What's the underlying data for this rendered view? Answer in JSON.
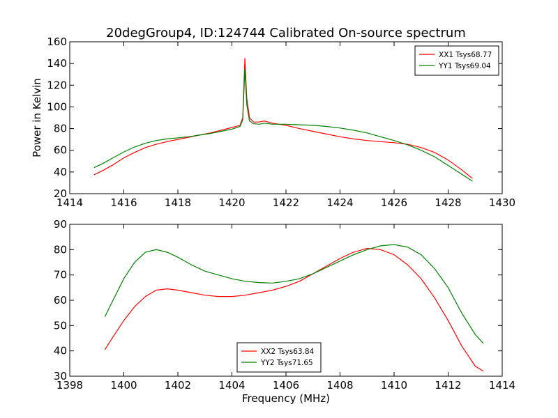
{
  "figure": {
    "title": "20degGroup4, ID:124744 Calibrated On-source spectrum"
  },
  "chart_data": [
    {
      "type": "line",
      "title": "20degGroup4, ID:124744 Calibrated On-source spectrum",
      "xlabel": "",
      "ylabel": "Power in Kelvin",
      "xlim": [
        1414,
        1430
      ],
      "ylim": [
        20,
        160
      ],
      "xticks": [
        1414,
        1416,
        1418,
        1420,
        1422,
        1424,
        1426,
        1428,
        1430
      ],
      "yticks": [
        20,
        40,
        60,
        80,
        100,
        120,
        140,
        160
      ],
      "legend_position": "top-right",
      "grid": false,
      "series": [
        {
          "name": "XX1 Tsys68.77",
          "color": "#ff0000",
          "points": [
            [
              1414.9,
              37.5
            ],
            [
              1415.2,
              41
            ],
            [
              1415.6,
              46.5
            ],
            [
              1416.0,
              53
            ],
            [
              1416.4,
              58
            ],
            [
              1416.8,
              62.5
            ],
            [
              1417.2,
              65.5
            ],
            [
              1417.6,
              68
            ],
            [
              1418.0,
              70
            ],
            [
              1418.4,
              72
            ],
            [
              1418.8,
              74
            ],
            [
              1419.2,
              76
            ],
            [
              1419.6,
              78.5
            ],
            [
              1420.0,
              81
            ],
            [
              1420.3,
              83
            ],
            [
              1420.4,
              90
            ],
            [
              1420.48,
              145
            ],
            [
              1420.55,
              108
            ],
            [
              1420.65,
              90
            ],
            [
              1420.8,
              86
            ],
            [
              1421.0,
              86
            ],
            [
              1421.2,
              87
            ],
            [
              1421.5,
              85
            ],
            [
              1422.0,
              83
            ],
            [
              1422.5,
              80
            ],
            [
              1423.0,
              77.5
            ],
            [
              1423.5,
              75
            ],
            [
              1424.0,
              72.5
            ],
            [
              1424.5,
              70.5
            ],
            [
              1425.0,
              69
            ],
            [
              1425.5,
              68
            ],
            [
              1426.0,
              67
            ],
            [
              1426.5,
              65.5
            ],
            [
              1427.0,
              62.5
            ],
            [
              1427.5,
              58
            ],
            [
              1428.0,
              51
            ],
            [
              1428.5,
              42
            ],
            [
              1428.9,
              34
            ]
          ]
        },
        {
          "name": "YY1 Tsys69.04",
          "color": "#008000",
          "points": [
            [
              1414.9,
              44
            ],
            [
              1415.2,
              47.5
            ],
            [
              1415.6,
              53
            ],
            [
              1416.0,
              58.5
            ],
            [
              1416.4,
              63
            ],
            [
              1416.8,
              66.5
            ],
            [
              1417.2,
              69
            ],
            [
              1417.6,
              70.5
            ],
            [
              1418.0,
              71.5
            ],
            [
              1418.4,
              72.5
            ],
            [
              1418.8,
              74
            ],
            [
              1419.2,
              75.5
            ],
            [
              1419.6,
              77.5
            ],
            [
              1420.0,
              79.5
            ],
            [
              1420.3,
              82
            ],
            [
              1420.4,
              88
            ],
            [
              1420.48,
              135
            ],
            [
              1420.55,
              102
            ],
            [
              1420.65,
              87
            ],
            [
              1420.8,
              84.5
            ],
            [
              1421.0,
              84
            ],
            [
              1421.2,
              85
            ],
            [
              1421.5,
              84
            ],
            [
              1422.0,
              84
            ],
            [
              1422.5,
              83.5
            ],
            [
              1423.0,
              83
            ],
            [
              1423.5,
              82
            ],
            [
              1424.0,
              80.5
            ],
            [
              1424.5,
              78.5
            ],
            [
              1425.0,
              76
            ],
            [
              1425.5,
              72.5
            ],
            [
              1426.0,
              69
            ],
            [
              1426.5,
              65
            ],
            [
              1427.0,
              60
            ],
            [
              1427.5,
              54
            ],
            [
              1428.0,
              46
            ],
            [
              1428.5,
              38
            ],
            [
              1428.9,
              31.5
            ]
          ]
        }
      ]
    },
    {
      "type": "line",
      "title": "",
      "xlabel": "Frequency (MHz)",
      "ylabel": "",
      "xlim": [
        1398,
        1414
      ],
      "ylim": [
        30,
        90
      ],
      "xticks": [
        1398,
        1400,
        1402,
        1404,
        1406,
        1408,
        1410,
        1412,
        1414
      ],
      "yticks": [
        30,
        40,
        50,
        60,
        70,
        80,
        90
      ],
      "legend_position": "bottom-center",
      "grid": false,
      "series": [
        {
          "name": "XX2 Tsys63.84",
          "color": "#ff0000",
          "points": [
            [
              1399.3,
              40.5
            ],
            [
              1399.6,
              45.5
            ],
            [
              1400.0,
              52
            ],
            [
              1400.4,
              57.5
            ],
            [
              1400.8,
              61.5
            ],
            [
              1401.2,
              64
            ],
            [
              1401.6,
              64.5
            ],
            [
              1402.0,
              64
            ],
            [
              1402.5,
              63
            ],
            [
              1403.0,
              62
            ],
            [
              1403.5,
              61.5
            ],
            [
              1404.0,
              61.5
            ],
            [
              1404.5,
              62
            ],
            [
              1405.0,
              63
            ],
            [
              1405.5,
              64
            ],
            [
              1406.0,
              65.5
            ],
            [
              1406.5,
              67.5
            ],
            [
              1407.0,
              70.5
            ],
            [
              1407.5,
              73.5
            ],
            [
              1408.0,
              76.5
            ],
            [
              1408.5,
              79
            ],
            [
              1409.0,
              80.5
            ],
            [
              1409.5,
              80
            ],
            [
              1410.0,
              78
            ],
            [
              1410.5,
              74
            ],
            [
              1411.0,
              68.5
            ],
            [
              1411.5,
              61
            ],
            [
              1412.0,
              52
            ],
            [
              1412.5,
              42
            ],
            [
              1413.0,
              34
            ],
            [
              1413.3,
              32
            ]
          ]
        },
        {
          "name": "YY2 Tsys71.65",
          "color": "#008000",
          "points": [
            [
              1399.3,
              53.5
            ],
            [
              1399.6,
              60
            ],
            [
              1400.0,
              68.5
            ],
            [
              1400.4,
              75
            ],
            [
              1400.8,
              79
            ],
            [
              1401.2,
              80
            ],
            [
              1401.6,
              79
            ],
            [
              1402.0,
              77
            ],
            [
              1402.5,
              74
            ],
            [
              1403.0,
              71.5
            ],
            [
              1403.5,
              70
            ],
            [
              1404.0,
              68.5
            ],
            [
              1404.5,
              67.5
            ],
            [
              1405.0,
              67
            ],
            [
              1405.5,
              66.8
            ],
            [
              1406.0,
              67.5
            ],
            [
              1406.5,
              68.5
            ],
            [
              1407.0,
              70.5
            ],
            [
              1407.5,
              73
            ],
            [
              1408.0,
              75.5
            ],
            [
              1408.5,
              78
            ],
            [
              1409.0,
              80
            ],
            [
              1409.5,
              81.5
            ],
            [
              1410.0,
              82
            ],
            [
              1410.5,
              81
            ],
            [
              1411.0,
              78
            ],
            [
              1411.5,
              72.5
            ],
            [
              1412.0,
              65
            ],
            [
              1412.5,
              55
            ],
            [
              1413.0,
              46.5
            ],
            [
              1413.3,
              43
            ]
          ]
        }
      ]
    }
  ]
}
